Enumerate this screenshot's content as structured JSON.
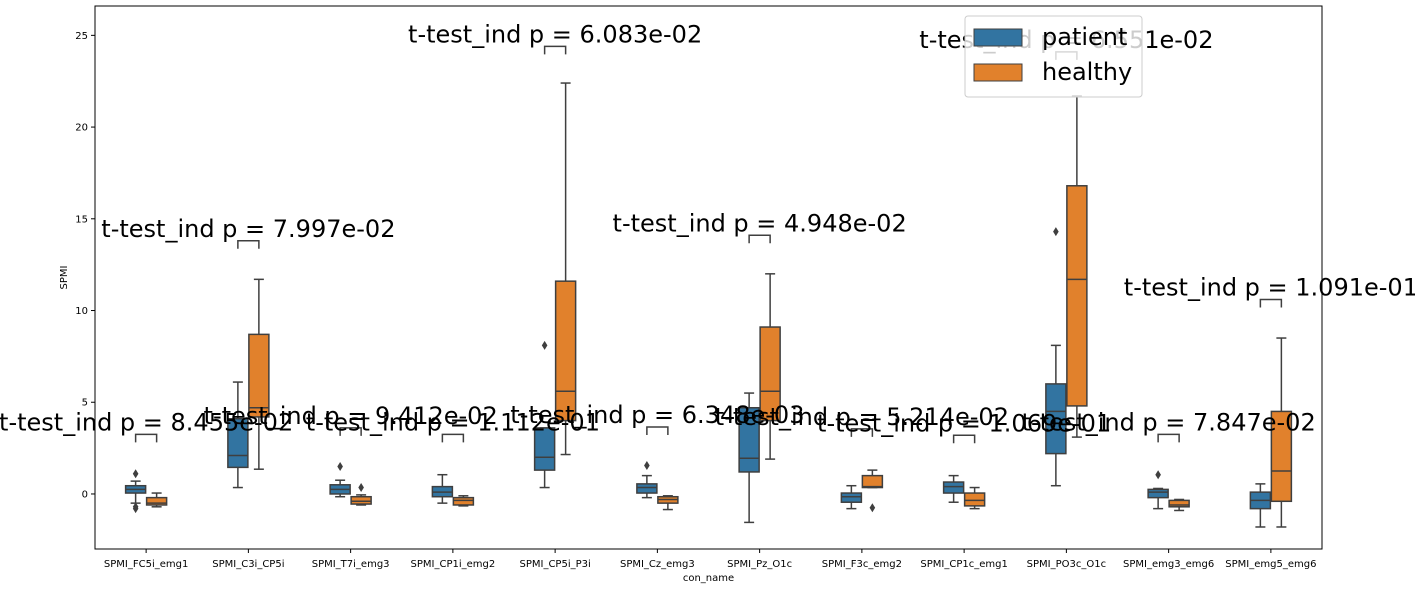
{
  "chart_data": {
    "type": "box",
    "xlabel": "con_name",
    "ylabel": "SPMI",
    "ylim": [
      -3,
      26.6
    ],
    "yticks": [
      0,
      5,
      10,
      15,
      20,
      25
    ],
    "grid": false,
    "legend_position": "top-right",
    "categories": [
      "SPMI_FC5i_emg1",
      "SPMI_C3i_CP5i",
      "SPMI_T7i_emg3",
      "SPMI_CP1i_emg2",
      "SPMI_CP5i_P3i",
      "SPMI_Cz_emg3",
      "SPMI_Pz_O1c",
      "SPMI_F3c_emg2",
      "SPMI_CP1c_emg1",
      "SPMI_PO3c_O1c",
      "SPMI_emg3_emg6",
      "SPMI_emg5_emg6"
    ],
    "series": [
      {
        "name": "patient",
        "color": "#3274a1",
        "boxes": [
          {
            "whislo": -0.5,
            "q1": 0.05,
            "med": 0.25,
            "q3": 0.45,
            "whishi": 0.7,
            "fliers": [
              1.1,
              -0.7,
              -0.8
            ]
          },
          {
            "whislo": 0.35,
            "q1": 1.45,
            "med": 2.1,
            "q3": 4.1,
            "whishi": 6.1,
            "fliers": []
          },
          {
            "whislo": -0.15,
            "q1": 0.0,
            "med": 0.25,
            "q3": 0.5,
            "whishi": 0.75,
            "fliers": [
              1.5
            ]
          },
          {
            "whislo": -0.5,
            "q1": -0.15,
            "med": 0.1,
            "q3": 0.4,
            "whishi": 1.05,
            "fliers": []
          },
          {
            "whislo": 0.35,
            "q1": 1.3,
            "med": 2.0,
            "q3": 3.6,
            "whishi": 3.6,
            "fliers": [
              8.1
            ]
          },
          {
            "whislo": -0.2,
            "q1": 0.05,
            "med": 0.35,
            "q3": 0.55,
            "whishi": 1.0,
            "fliers": [
              1.55
            ]
          },
          {
            "whislo": -1.55,
            "q1": 1.2,
            "med": 1.95,
            "q3": 4.7,
            "whishi": 5.5,
            "fliers": []
          },
          {
            "whislo": -0.8,
            "q1": -0.45,
            "med": -0.15,
            "q3": 0.05,
            "whishi": 0.45,
            "fliers": []
          },
          {
            "whislo": -0.45,
            "q1": 0.05,
            "med": 0.4,
            "q3": 0.65,
            "whishi": 1.0,
            "fliers": []
          },
          {
            "whislo": 0.45,
            "q1": 2.2,
            "med": 4.5,
            "q3": 6.0,
            "whishi": 8.1,
            "fliers": [
              14.3
            ]
          },
          {
            "whislo": -0.8,
            "q1": -0.2,
            "med": 0.1,
            "q3": 0.25,
            "whishi": 0.3,
            "fliers": [
              1.05
            ]
          },
          {
            "whislo": -1.8,
            "q1": -0.8,
            "med": -0.35,
            "q3": 0.1,
            "whishi": 0.55,
            "fliers": []
          }
        ]
      },
      {
        "name": "healthy",
        "color": "#e1812c",
        "boxes": [
          {
            "whislo": -0.7,
            "q1": -0.6,
            "med": -0.5,
            "q3": -0.2,
            "whishi": 0.05,
            "fliers": []
          },
          {
            "whislo": 1.35,
            "q1": 4.2,
            "med": 4.7,
            "q3": 8.7,
            "whishi": 11.7,
            "fliers": []
          },
          {
            "whislo": -0.6,
            "q1": -0.55,
            "med": -0.4,
            "q3": -0.15,
            "whishi": -0.05,
            "fliers": [
              0.35
            ]
          },
          {
            "whislo": -0.65,
            "q1": -0.6,
            "med": -0.35,
            "q3": -0.2,
            "whishi": -0.1,
            "fliers": []
          },
          {
            "whislo": 2.15,
            "q1": 4.0,
            "med": 5.6,
            "q3": 11.6,
            "whishi": 22.4,
            "fliers": []
          },
          {
            "whislo": -0.85,
            "q1": -0.5,
            "med": -0.3,
            "q3": -0.15,
            "whishi": -0.1,
            "fliers": []
          },
          {
            "whislo": 1.9,
            "q1": 4.0,
            "med": 5.6,
            "q3": 9.1,
            "whishi": 12.0,
            "fliers": []
          },
          {
            "whislo": 0.35,
            "q1": 0.35,
            "med": 0.4,
            "q3": 1.0,
            "whishi": 1.3,
            "fliers": [
              -0.75
            ]
          },
          {
            "whislo": -0.8,
            "q1": -0.65,
            "med": -0.35,
            "q3": 0.05,
            "whishi": 0.35,
            "fliers": []
          },
          {
            "whislo": 3.1,
            "q1": 4.8,
            "med": 11.7,
            "q3": 16.8,
            "whishi": 21.7,
            "fliers": []
          },
          {
            "whislo": -0.9,
            "q1": -0.7,
            "med": -0.6,
            "q3": -0.35,
            "whishi": -0.3,
            "fliers": []
          },
          {
            "whislo": -1.8,
            "q1": -0.4,
            "med": 1.25,
            "q3": 4.5,
            "whishi": 8.5,
            "fliers": []
          }
        ]
      }
    ],
    "annotations": [
      {
        "category": 0,
        "bracket_y": 3.25,
        "text": "t-test_ind p = 8.455e-02"
      },
      {
        "category": 1,
        "bracket_y": 13.8,
        "text": "t-test_ind p = 7.997e-02"
      },
      {
        "category": 2,
        "bracket_y": 3.6,
        "text": "t-test_ind p = 9.412e-02"
      },
      {
        "category": 3,
        "bracket_y": 3.25,
        "text": "t-test_ind p = 1.112e-01"
      },
      {
        "category": 4,
        "bracket_y": 24.4,
        "text": "t-test_ind p = 6.083e-02"
      },
      {
        "category": 5,
        "bracket_y": 3.65,
        "text": "t-test_ind p = 6.348e-03"
      },
      {
        "category": 6,
        "bracket_y": 14.1,
        "text": "t-test_ind p = 4.948e-02"
      },
      {
        "category": 7,
        "bracket_y": 3.55,
        "text": "t-test_ind p = 5.214e-02"
      },
      {
        "category": 8,
        "bracket_y": 3.2,
        "text": "t-test_ind p = 1.069e-01"
      },
      {
        "category": 9,
        "bracket_y": 24.1,
        "text": "t-test_ind p = 6.551e-02"
      },
      {
        "category": 10,
        "bracket_y": 3.25,
        "text": "t-test_ind p = 7.847e-02"
      },
      {
        "category": 11,
        "bracket_y": 10.6,
        "text": "t-test_ind p = 1.091e-01"
      }
    ]
  }
}
